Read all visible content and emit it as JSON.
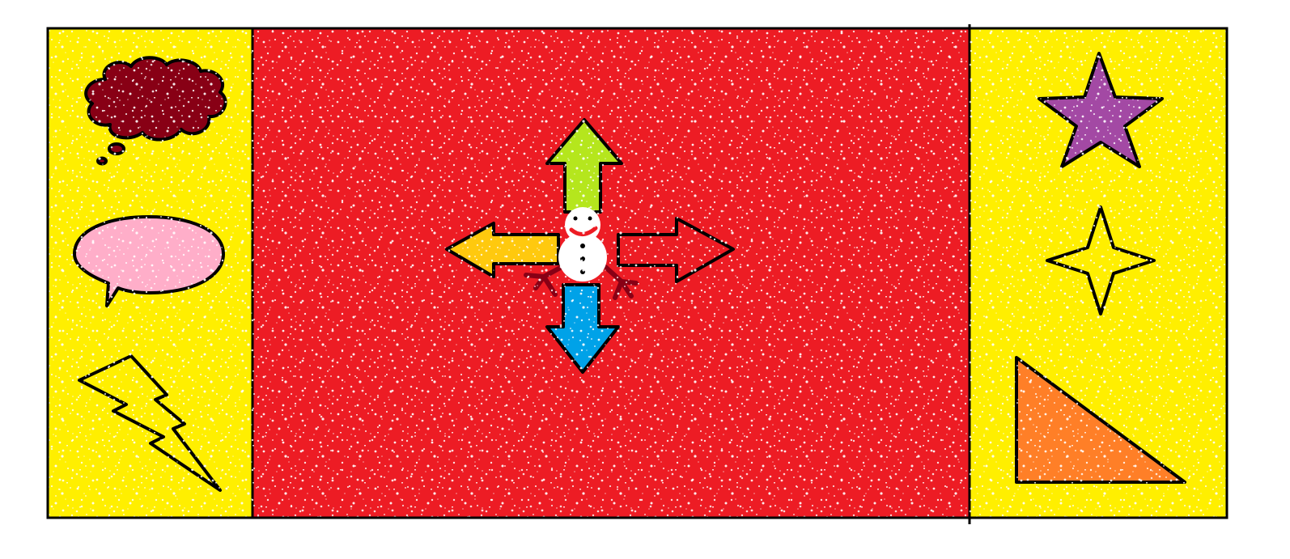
{
  "canvas": {
    "background_color": "#ffffff",
    "speckle_color": "#ffffff"
  },
  "panels": {
    "left": {
      "color": "#ffef00"
    },
    "center": {
      "color": "#ed1c24"
    },
    "right": {
      "color": "#ffef00"
    }
  },
  "left_shapes": [
    {
      "icon": "thought-cloud",
      "color": "#880015"
    },
    {
      "icon": "speech-bubble",
      "color": "#ffaec9"
    },
    {
      "icon": "lightning-bolt",
      "color": "#ffef00"
    }
  ],
  "right_shapes": [
    {
      "icon": "five-point-star",
      "color": "#a349a4"
    },
    {
      "icon": "four-point-star",
      "color": "#ffef00"
    },
    {
      "icon": "right-triangle",
      "color": "#ff7f27"
    }
  ],
  "arrows": {
    "up": {
      "icon": "arrow-up",
      "color": "#b5e61d"
    },
    "down": {
      "icon": "arrow-down",
      "color": "#00a2e8"
    },
    "left": {
      "icon": "arrow-left",
      "color": "#ffc90e"
    },
    "right": {
      "icon": "arrow-right",
      "color": "#ed1c24"
    }
  },
  "character": {
    "icon": "snowman",
    "body_color": "#ffffff",
    "mouth_color": "#ed1c24",
    "arm_color": "#880015"
  }
}
